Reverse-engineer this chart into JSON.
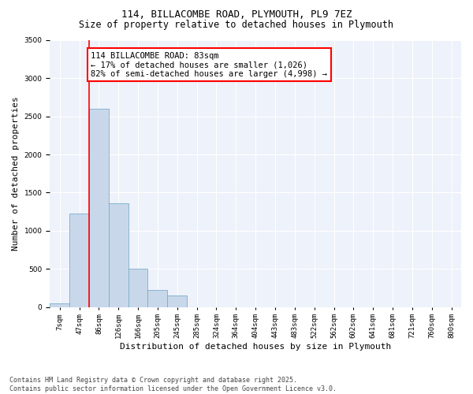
{
  "title_line1": "114, BILLACOMBE ROAD, PLYMOUTH, PL9 7EZ",
  "title_line2": "Size of property relative to detached houses in Plymouth",
  "xlabel": "Distribution of detached houses by size in Plymouth",
  "ylabel": "Number of detached properties",
  "bar_labels": [
    "7sqm",
    "47sqm",
    "86sqm",
    "126sqm",
    "166sqm",
    "205sqm",
    "245sqm",
    "285sqm",
    "324sqm",
    "364sqm",
    "404sqm",
    "443sqm",
    "483sqm",
    "522sqm",
    "562sqm",
    "602sqm",
    "641sqm",
    "681sqm",
    "721sqm",
    "760sqm",
    "800sqm"
  ],
  "bar_values": [
    50,
    1230,
    2600,
    1360,
    500,
    220,
    150,
    0,
    0,
    0,
    0,
    0,
    0,
    0,
    0,
    0,
    0,
    0,
    0,
    0,
    0
  ],
  "bar_color": "#c8d8ea",
  "bar_edgecolor": "#7aaccc",
  "vline_color": "red",
  "annotation_text": "114 BILLACOMBE ROAD: 83sqm\n← 17% of detached houses are smaller (1,026)\n82% of semi-detached houses are larger (4,998) →",
  "annotation_box_color": "white",
  "annotation_box_edgecolor": "red",
  "ylim": [
    0,
    3500
  ],
  "yticks": [
    0,
    500,
    1000,
    1500,
    2000,
    2500,
    3000,
    3500
  ],
  "background_color": "#eef2fa",
  "footer_line1": "Contains HM Land Registry data © Crown copyright and database right 2025.",
  "footer_line2": "Contains public sector information licensed under the Open Government Licence v3.0.",
  "title_fontsize": 9,
  "subtitle_fontsize": 8.5,
  "tick_fontsize": 6.5,
  "ylabel_fontsize": 8,
  "xlabel_fontsize": 8,
  "footer_fontsize": 6,
  "annotation_fontsize": 7.5
}
